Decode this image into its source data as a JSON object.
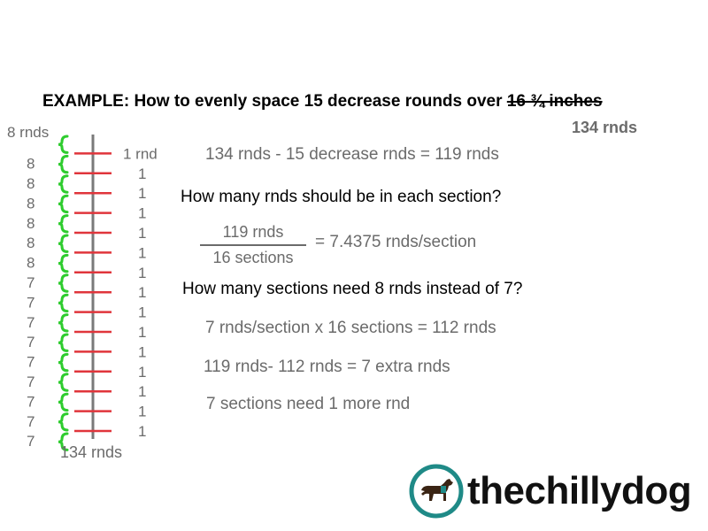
{
  "title": {
    "text": "EXAMPLE: How to evenly space 15 decrease rounds over ",
    "struck": "16 ¾ inches ",
    "replacement": "134 rnds"
  },
  "diagram": {
    "top_label": "8 rnds",
    "bottom_label": "134 rnds",
    "section_counts": [
      "8",
      "8",
      "8",
      "8",
      "8",
      "8",
      "7",
      "7",
      "7",
      "7",
      "7",
      "7",
      "7",
      "7",
      "7"
    ],
    "decrease_labels": [
      "1 rnd",
      "1",
      "1",
      "1",
      "1",
      "1",
      "1",
      "1",
      "1",
      "1",
      "1",
      "1",
      "1",
      "1",
      "1"
    ],
    "colors": {
      "bracket": "#2ecc2e",
      "tick": "#e0353b",
      "spine": "#7a7a7a"
    }
  },
  "steps": {
    "line1": "134 rnds - 15 decrease rnds = 119 rnds",
    "question1": "How many rnds should be in each section?",
    "fraction_numerator": "119 rnds",
    "fraction_denominator": "16 sections",
    "fraction_result": "= 7.4375 rnds/section",
    "question2": "How many sections need 8 rnds instead of 7?",
    "line2": "7 rnds/section x 16 sections = 112 rnds",
    "line3": "119 rnds- 112 rnds = 7 extra rnds",
    "line4": "7 sections need 1 more rnd"
  },
  "brand": {
    "name": "thechillydog",
    "logo_icon": "dog-logo-icon",
    "logo_color": "#1f8a87"
  }
}
